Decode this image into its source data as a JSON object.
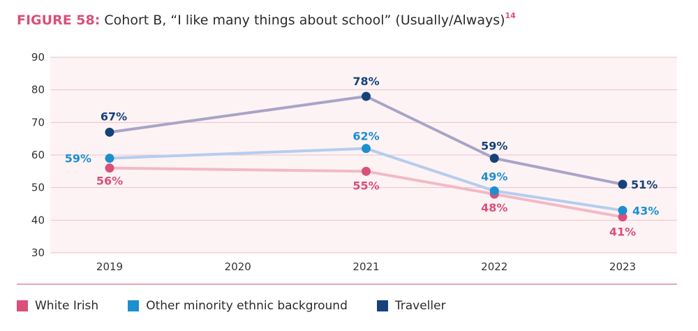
{
  "title": {
    "figure_label": "FIGURE 58:",
    "text": "Cohort B, “I like many things about school” (Usually/Always)",
    "footnote": "14"
  },
  "chart_data": {
    "type": "line",
    "title": "Cohort B, “I like many things about school” (Usually/Always)",
    "xlabel": "",
    "ylabel": "",
    "categories": [
      "2019",
      "2020",
      "2021",
      "2022",
      "2023"
    ],
    "ylim": [
      30,
      90
    ],
    "yticks": [
      30,
      40,
      50,
      60,
      70,
      80,
      90
    ],
    "grid": true,
    "legend_position": "bottom",
    "series": [
      {
        "name": "White Irish",
        "line_color": "#f2b9c6",
        "marker_color": "#d9507a",
        "label_color": "#d9507a",
        "values": [
          56,
          null,
          55,
          48,
          41
        ],
        "labels": [
          "56%",
          null,
          "55%",
          "48%",
          "41%"
        ]
      },
      {
        "name": "Other minority ethnic background",
        "line_color": "#b5cdee",
        "marker_color": "#1c8fcf",
        "label_color": "#1c8fcf",
        "values": [
          59,
          null,
          62,
          49,
          43
        ],
        "labels": [
          "59%",
          null,
          "62%",
          "49%",
          "43%"
        ]
      },
      {
        "name": "Traveller",
        "line_color": "#a8a4c8",
        "marker_color": "#16427a",
        "label_color": "#16427a",
        "values": [
          67,
          null,
          78,
          59,
          51
        ],
        "labels": [
          "67%",
          null,
          "78%",
          "59%",
          "51%"
        ]
      }
    ]
  },
  "legend": {
    "items": [
      {
        "label": "White Irish",
        "color": "#d9507a"
      },
      {
        "label": "Other minority ethnic background",
        "color": "#1c8fcf"
      },
      {
        "label": "Traveller",
        "color": "#16427a"
      }
    ]
  }
}
